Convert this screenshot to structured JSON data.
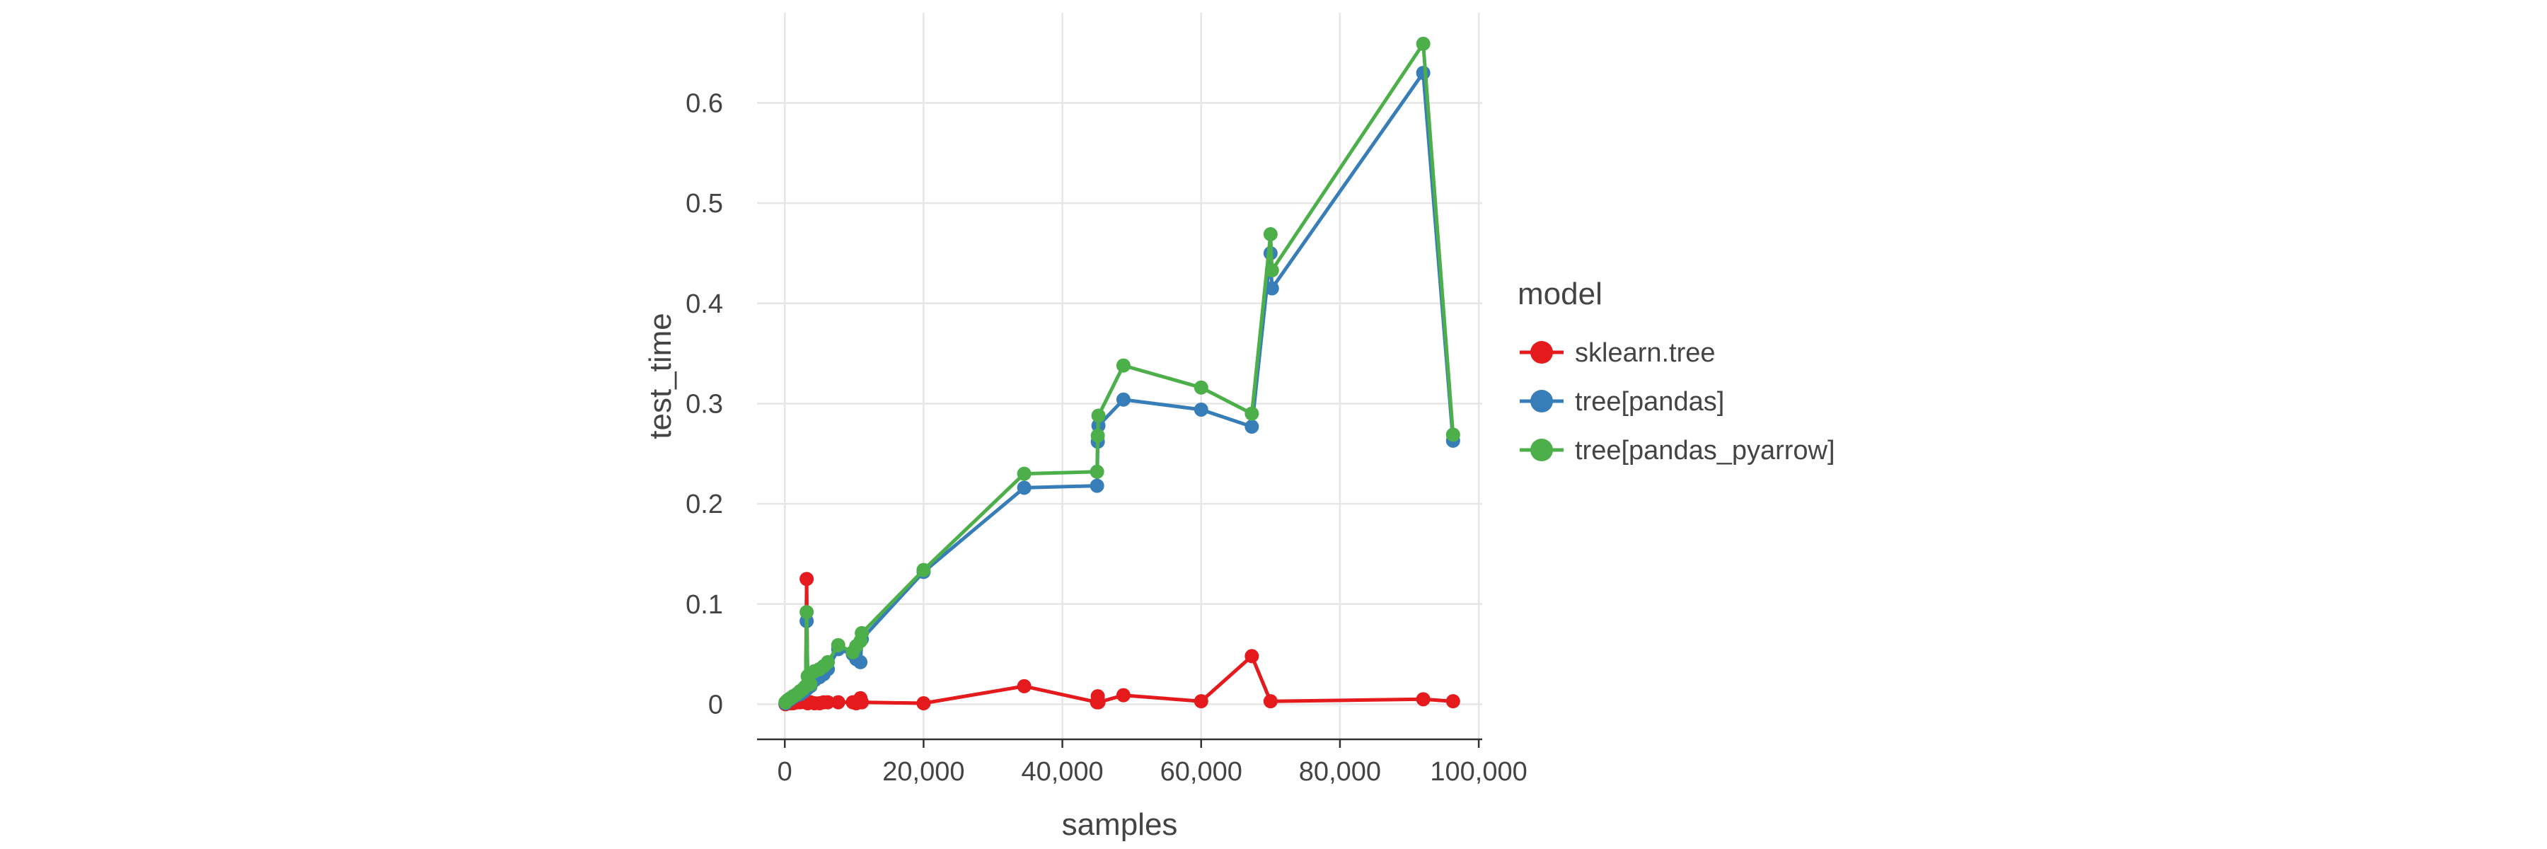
{
  "chart_data": {
    "type": "line",
    "xlabel": "samples",
    "ylabel": "test_time",
    "xlim": [
      -4000,
      100500
    ],
    "ylim": [
      -0.035,
      0.69
    ],
    "x_ticks": [
      0,
      20000,
      40000,
      60000,
      80000,
      100000
    ],
    "x_tick_labels": [
      "0",
      "20,000",
      "40,000",
      "60,000",
      "80,000",
      "100,000"
    ],
    "y_ticks": [
      0,
      0.1,
      0.2,
      0.3,
      0.4,
      0.5,
      0.6
    ],
    "y_tick_labels": [
      "0",
      "0.1",
      "0.2",
      "0.3",
      "0.4",
      "0.5",
      "0.6"
    ],
    "grid": true,
    "legend": {
      "title": "model",
      "position": "right"
    },
    "series": [
      {
        "name": "sklearn.tree",
        "color": "#e41a1c",
        "points": [
          [
            100,
            0.0
          ],
          [
            400,
            0.001
          ],
          [
            800,
            0.001
          ],
          [
            1200,
            0.001
          ],
          [
            1700,
            0.002
          ],
          [
            2200,
            0.002
          ],
          [
            2600,
            0.003
          ],
          [
            3000,
            0.002
          ],
          [
            3150,
            0.125
          ],
          [
            3300,
            0.001
          ],
          [
            3700,
            0.002
          ],
          [
            4300,
            0.001
          ],
          [
            5000,
            0.001
          ],
          [
            5600,
            0.002
          ],
          [
            6200,
            0.002
          ],
          [
            7700,
            0.002
          ],
          [
            9800,
            0.002
          ],
          [
            10300,
            0.001
          ],
          [
            10900,
            0.006
          ],
          [
            11100,
            0.002
          ],
          [
            20000,
            0.001
          ],
          [
            34500,
            0.018
          ],
          [
            45000,
            0.002
          ],
          [
            45100,
            0.008
          ],
          [
            45200,
            0.002
          ],
          [
            48800,
            0.009
          ],
          [
            60000,
            0.003
          ],
          [
            67300,
            0.048
          ],
          [
            70000,
            0.003
          ],
          [
            92000,
            0.005
          ],
          [
            96300,
            0.003
          ]
        ]
      },
      {
        "name": "tree[pandas]",
        "color": "#377eb8",
        "points": [
          [
            100,
            0.001
          ],
          [
            400,
            0.003
          ],
          [
            800,
            0.005
          ],
          [
            1200,
            0.007
          ],
          [
            1700,
            0.009
          ],
          [
            2200,
            0.01
          ],
          [
            2600,
            0.012
          ],
          [
            3000,
            0.014
          ],
          [
            3150,
            0.083
          ],
          [
            3300,
            0.016
          ],
          [
            3700,
            0.018
          ],
          [
            4300,
            0.024
          ],
          [
            5000,
            0.027
          ],
          [
            5600,
            0.03
          ],
          [
            6200,
            0.035
          ],
          [
            7700,
            0.055
          ],
          [
            9800,
            0.05
          ],
          [
            10300,
            0.045
          ],
          [
            10900,
            0.042
          ],
          [
            11100,
            0.065
          ],
          [
            20000,
            0.132
          ],
          [
            34500,
            0.216
          ],
          [
            45000,
            0.218
          ],
          [
            45100,
            0.262
          ],
          [
            45200,
            0.278
          ],
          [
            48800,
            0.304
          ],
          [
            60000,
            0.294
          ],
          [
            67300,
            0.277
          ],
          [
            70000,
            0.45
          ],
          [
            70200,
            0.415
          ],
          [
            92000,
            0.63
          ],
          [
            96300,
            0.263
          ]
        ]
      },
      {
        "name": "tree[pandas_pyarrow]",
        "color": "#4daf4a",
        "points": [
          [
            100,
            0.002
          ],
          [
            400,
            0.004
          ],
          [
            800,
            0.006
          ],
          [
            1200,
            0.008
          ],
          [
            1700,
            0.01
          ],
          [
            2200,
            0.013
          ],
          [
            2600,
            0.015
          ],
          [
            3000,
            0.018
          ],
          [
            3150,
            0.092
          ],
          [
            3300,
            0.028
          ],
          [
            3700,
            0.02
          ],
          [
            4300,
            0.033
          ],
          [
            5000,
            0.035
          ],
          [
            5600,
            0.038
          ],
          [
            6200,
            0.042
          ],
          [
            7700,
            0.059
          ],
          [
            9800,
            0.052
          ],
          [
            10300,
            0.058
          ],
          [
            10900,
            0.063
          ],
          [
            11100,
            0.071
          ],
          [
            20000,
            0.134
          ],
          [
            34500,
            0.23
          ],
          [
            45000,
            0.232
          ],
          [
            45100,
            0.268
          ],
          [
            45200,
            0.288
          ],
          [
            48800,
            0.338
          ],
          [
            60000,
            0.316
          ],
          [
            67300,
            0.29
          ],
          [
            70000,
            0.469
          ],
          [
            70200,
            0.433
          ],
          [
            92000,
            0.659
          ],
          [
            96300,
            0.269
          ]
        ]
      }
    ]
  }
}
